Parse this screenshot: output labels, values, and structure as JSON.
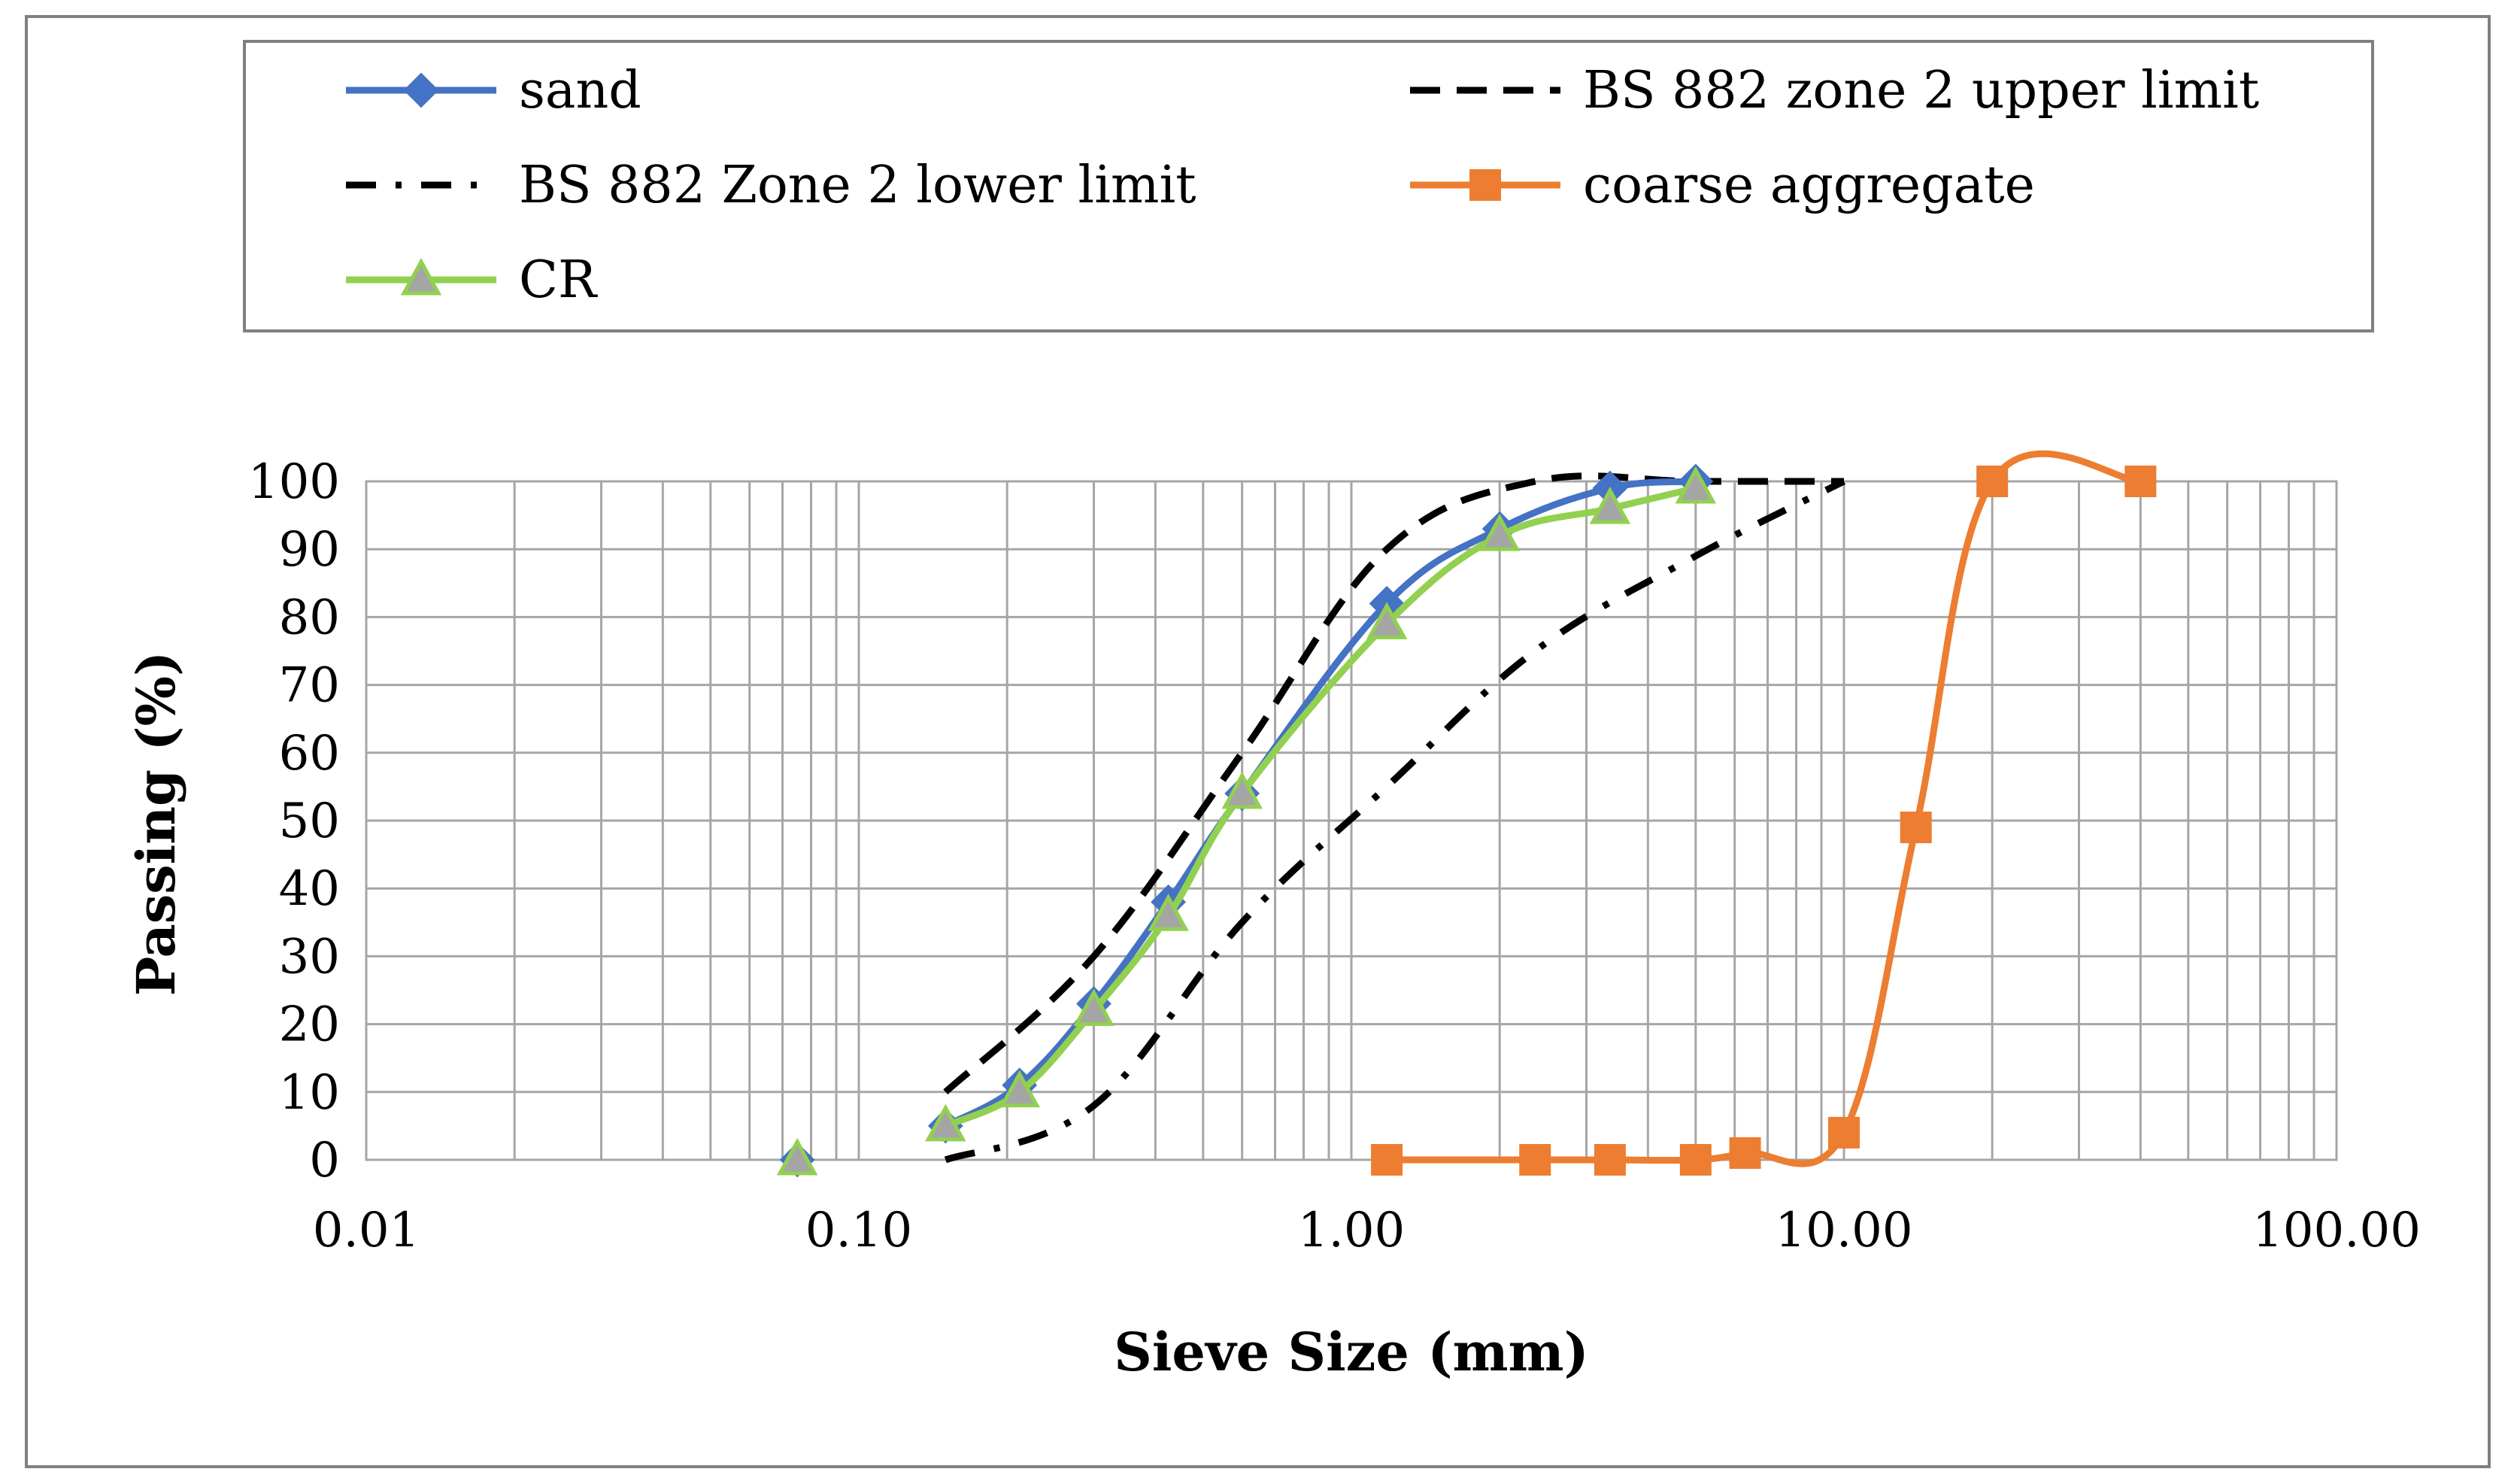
{
  "chart_data": {
    "type": "line",
    "title": "",
    "xlabel": "Sieve Size (mm)",
    "ylabel": "Passing (%)",
    "xscale": "log",
    "xlim": [
      0.01,
      100
    ],
    "ylim": [
      0,
      100
    ],
    "x_ticks": [
      "0.01",
      "0.10",
      "1.00",
      "10.00",
      "100.00"
    ],
    "y_ticks": [
      "0",
      "10",
      "20",
      "30",
      "40",
      "50",
      "60",
      "70",
      "80",
      "90",
      "100"
    ],
    "grid": true,
    "legend_position": "top",
    "series": [
      {
        "name": "sand",
        "color": "#4472C4",
        "line_style": "solid",
        "marker": "diamond",
        "x": [
          0.075,
          0.15,
          0.212,
          0.3,
          0.425,
          0.6,
          1.18,
          2.0,
          3.35,
          5.0
        ],
        "y": [
          0,
          5,
          11,
          23,
          38,
          54,
          82,
          93,
          99,
          100
        ]
      },
      {
        "name": "BS 882 zone 2 upper limit",
        "color": "#000000",
        "line_style": "dash",
        "marker": "none",
        "x": [
          0.15,
          0.3,
          0.6,
          1.18,
          2.36,
          5.0,
          10.0
        ],
        "y": [
          10,
          30,
          60,
          90,
          100,
          100,
          100
        ]
      },
      {
        "name": "BS 882 Zone 2 lower limit",
        "color": "#000000",
        "line_style": "dashdot",
        "marker": "none",
        "x": [
          0.15,
          0.3,
          0.6,
          1.18,
          2.36,
          5.0,
          10.0
        ],
        "y": [
          0,
          8,
          35,
          55,
          75,
          89,
          100
        ]
      },
      {
        "name": "coarse aggregate",
        "color": "#ED7D31",
        "line_style": "solid",
        "marker": "square",
        "x": [
          1.18,
          2.36,
          3.35,
          5.0,
          6.3,
          10.0,
          14.0,
          20.0,
          40.0
        ],
        "y": [
          0,
          0,
          0,
          0,
          1,
          4,
          49,
          100,
          100
        ]
      },
      {
        "name": "CR",
        "color": "#92D050",
        "line_style": "solid",
        "marker": "triangle",
        "x": [
          0.075,
          0.15,
          0.212,
          0.3,
          0.425,
          0.6,
          1.18,
          2.0,
          3.35,
          5.0
        ],
        "y": [
          0,
          5,
          10,
          22,
          36,
          54,
          79,
          92,
          96,
          99
        ]
      }
    ]
  }
}
